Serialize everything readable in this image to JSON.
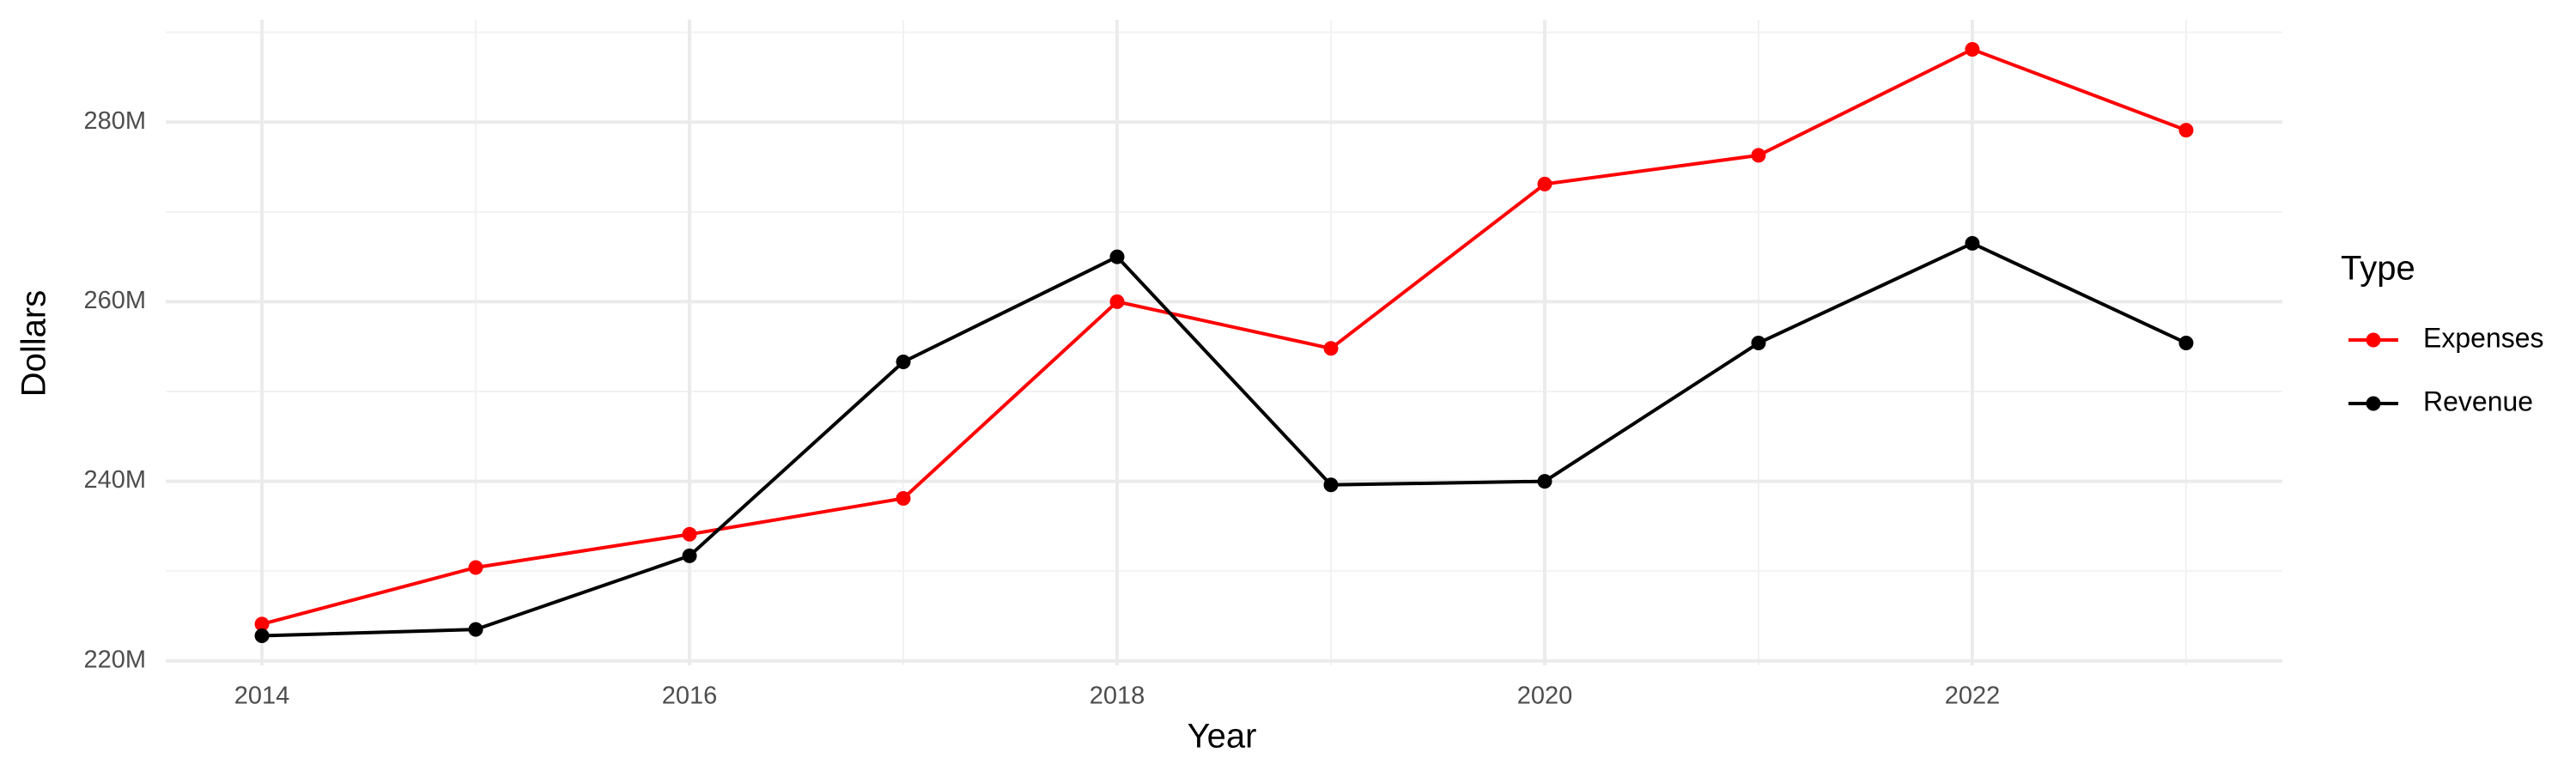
{
  "chart_data": {
    "type": "line",
    "x_label": "Year",
    "y_label": "Dollars",
    "legend_title": "Type",
    "legend_position": "right",
    "grid": true,
    "x": [
      2014,
      2015,
      2016,
      2017,
      2018,
      2019,
      2020,
      2021,
      2022,
      2023
    ],
    "series": [
      {
        "name": "Expenses",
        "color": "#ff0000",
        "values": [
          224100000,
          230400000,
          234100000,
          238100000,
          260000000,
          254800000,
          273100000,
          276300000,
          288100000,
          279100000
        ]
      },
      {
        "name": "Revenue",
        "color": "#000000",
        "values": [
          222800000,
          223500000,
          231700000,
          253300000,
          265000000,
          239600000,
          240000000,
          255400000,
          266500000,
          255400000
        ]
      }
    ],
    "xlim": [
      2013.55,
      2023.45
    ],
    "xticks": [
      2014,
      2016,
      2018,
      2020,
      2022
    ],
    "xminor": [
      2015,
      2017,
      2019,
      2021,
      2023
    ],
    "ylim": [
      219500000,
      291400000
    ],
    "yticks": [
      {
        "value": 220000000,
        "label": "220M"
      },
      {
        "value": 240000000,
        "label": "240M"
      },
      {
        "value": 260000000,
        "label": "260M"
      },
      {
        "value": 280000000,
        "label": "280M"
      }
    ],
    "yminor": [
      230000000,
      250000000,
      270000000,
      290000000
    ]
  }
}
